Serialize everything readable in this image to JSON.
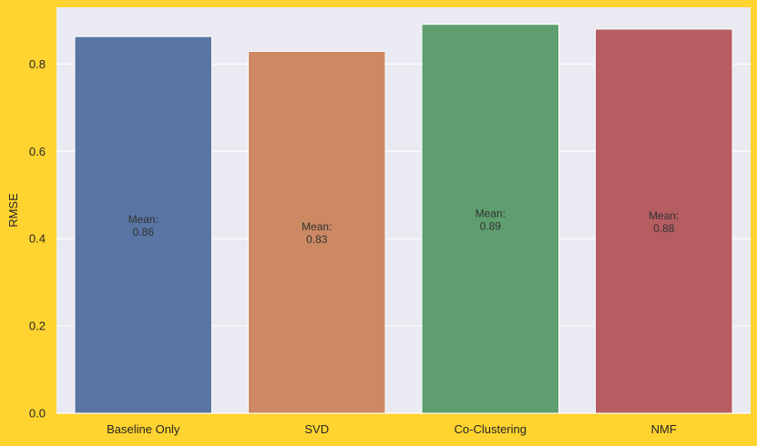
{
  "background_color": "#ffd330",
  "plot_background_color": "#eaeaf2",
  "gridline_color": "#ffffff",
  "chart_data": {
    "type": "bar",
    "title": "",
    "xlabel": "",
    "ylabel": "RMSE",
    "ylim": [
      0,
      0.93
    ],
    "yticks": [
      "0.0",
      "0.2",
      "0.4",
      "0.6",
      "0.8"
    ],
    "ytick_values": [
      0.0,
      0.2,
      0.4,
      0.6,
      0.8
    ],
    "grid": true,
    "categories": [
      "Baseline Only",
      "SVD",
      "Co-Clustering",
      "NMF"
    ],
    "values": [
      0.863,
      0.829,
      0.891,
      0.88
    ],
    "colors": [
      "#5975a4",
      "#cc8963",
      "#5f9e6e",
      "#b55d60"
    ],
    "bar_labels": [
      {
        "line1": "Mean:",
        "line2": "0.86"
      },
      {
        "line1": "Mean:",
        "line2": "0.83"
      },
      {
        "line1": "Mean:",
        "line2": "0.89"
      },
      {
        "line1": "Mean:",
        "line2": "0.88"
      }
    ]
  }
}
